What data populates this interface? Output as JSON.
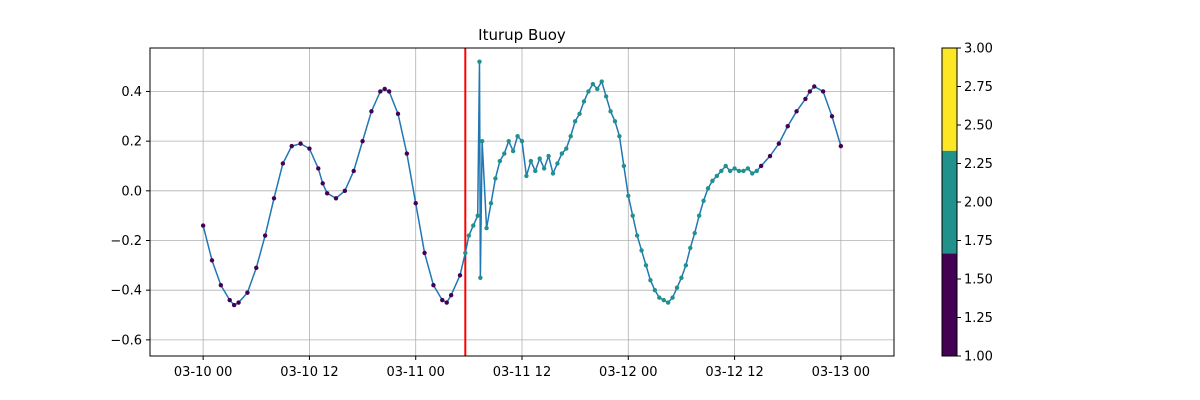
{
  "chart_data": {
    "type": "scatter",
    "title": "Iturup Buoy",
    "xlabel": "",
    "ylabel": "",
    "x_unit": "hours since 03-10 00",
    "xlim": [
      -6.0,
      78.0
    ],
    "ylim": [
      -0.665,
      0.575
    ],
    "x_ticks": [
      {
        "value": 0,
        "label": "03-10 00"
      },
      {
        "value": 12,
        "label": "03-10 12"
      },
      {
        "value": 24,
        "label": "03-11 00"
      },
      {
        "value": 36,
        "label": "03-11 12"
      },
      {
        "value": 48,
        "label": "03-12 00"
      },
      {
        "value": 60,
        "label": "03-12 12"
      },
      {
        "value": 72,
        "label": "03-13 00"
      }
    ],
    "y_ticks": [
      {
        "value": -0.6,
        "label": "−0.6"
      },
      {
        "value": -0.4,
        "label": "−0.4"
      },
      {
        "value": -0.2,
        "label": "−0.2"
      },
      {
        "value": 0.0,
        "label": "0.0"
      },
      {
        "value": 0.2,
        "label": "0.2"
      },
      {
        "value": 0.4,
        "label": "0.4"
      }
    ],
    "grid": true,
    "vertical_marker": {
      "x": 29.6,
      "color": "#ff0000"
    },
    "line_color": "#1f77b4",
    "colorbar": {
      "range": [
        1.0,
        3.0
      ],
      "ticks": [
        {
          "value": 1.0,
          "label": "1.00"
        },
        {
          "value": 1.25,
          "label": "1.25"
        },
        {
          "value": 1.5,
          "label": "1.50"
        },
        {
          "value": 1.75,
          "label": "1.75"
        },
        {
          "value": 2.0,
          "label": "2.00"
        },
        {
          "value": 2.25,
          "label": "2.25"
        },
        {
          "value": 2.5,
          "label": "2.50"
        },
        {
          "value": 2.75,
          "label": "2.75"
        },
        {
          "value": 3.0,
          "label": "3.00"
        }
      ],
      "bands": [
        {
          "from": 1.0,
          "to": 1.667,
          "color": "#440154"
        },
        {
          "from": 1.667,
          "to": 2.333,
          "color": "#21918c"
        },
        {
          "from": 2.333,
          "to": 3.0,
          "color": "#fde725"
        }
      ]
    },
    "series": [
      {
        "class": 1,
        "color": "#440154",
        "points": [
          [
            0.0,
            -0.14
          ],
          [
            1.0,
            -0.28
          ],
          [
            2.0,
            -0.38
          ],
          [
            3.0,
            -0.44
          ],
          [
            3.5,
            -0.46
          ],
          [
            4.0,
            -0.45
          ],
          [
            5.0,
            -0.41
          ],
          [
            6.0,
            -0.31
          ],
          [
            7.0,
            -0.18
          ],
          [
            8.0,
            -0.03
          ],
          [
            9.0,
            0.11
          ],
          [
            10.0,
            0.18
          ],
          [
            11.0,
            0.19
          ],
          [
            12.0,
            0.17
          ],
          [
            13.0,
            0.09
          ],
          [
            13.5,
            0.03
          ],
          [
            14.0,
            -0.01
          ],
          [
            15.0,
            -0.03
          ],
          [
            16.0,
            0.0
          ],
          [
            17.0,
            0.08
          ],
          [
            18.0,
            0.2
          ],
          [
            19.0,
            0.32
          ],
          [
            20.0,
            0.4
          ],
          [
            20.5,
            0.41
          ],
          [
            21.0,
            0.4
          ],
          [
            22.0,
            0.31
          ],
          [
            23.0,
            0.15
          ],
          [
            24.0,
            -0.05
          ],
          [
            25.0,
            -0.25
          ],
          [
            26.0,
            -0.38
          ],
          [
            27.0,
            -0.44
          ],
          [
            27.5,
            -0.45
          ],
          [
            28.0,
            -0.42
          ],
          [
            29.0,
            -0.34
          ],
          [
            63.0,
            0.1
          ],
          [
            64.0,
            0.14
          ],
          [
            65.0,
            0.19
          ],
          [
            66.0,
            0.26
          ],
          [
            67.0,
            0.32
          ],
          [
            68.0,
            0.37
          ],
          [
            68.5,
            0.4
          ],
          [
            69.0,
            0.42
          ],
          [
            70.0,
            0.4
          ],
          [
            71.0,
            0.3
          ],
          [
            72.0,
            0.18
          ]
        ]
      },
      {
        "class": 2,
        "color": "#21918c",
        "points": [
          [
            29.6,
            -0.25
          ],
          [
            30.0,
            -0.18
          ],
          [
            30.5,
            -0.14
          ],
          [
            31.0,
            -0.1
          ],
          [
            31.2,
            0.52
          ],
          [
            31.3,
            -0.35
          ],
          [
            31.5,
            0.2
          ],
          [
            32.0,
            -0.15
          ],
          [
            32.5,
            -0.05
          ],
          [
            33.0,
            0.05
          ],
          [
            33.5,
            0.12
          ],
          [
            34.0,
            0.15
          ],
          [
            34.5,
            0.2
          ],
          [
            35.0,
            0.16
          ],
          [
            35.5,
            0.22
          ],
          [
            36.0,
            0.2
          ],
          [
            36.5,
            0.06
          ],
          [
            37.0,
            0.12
          ],
          [
            37.5,
            0.08
          ],
          [
            38.0,
            0.13
          ],
          [
            38.5,
            0.09
          ],
          [
            39.0,
            0.14
          ],
          [
            39.5,
            0.07
          ],
          [
            40.0,
            0.11
          ],
          [
            40.5,
            0.15
          ],
          [
            41.0,
            0.17
          ],
          [
            41.5,
            0.22
          ],
          [
            42.0,
            0.28
          ],
          [
            42.5,
            0.31
          ],
          [
            43.0,
            0.36
          ],
          [
            43.5,
            0.4
          ],
          [
            44.0,
            0.43
          ],
          [
            44.5,
            0.41
          ],
          [
            45.0,
            0.44
          ],
          [
            45.5,
            0.38
          ],
          [
            46.0,
            0.32
          ],
          [
            46.5,
            0.28
          ],
          [
            47.0,
            0.22
          ],
          [
            47.5,
            0.1
          ],
          [
            48.0,
            -0.02
          ],
          [
            48.5,
            -0.1
          ],
          [
            49.0,
            -0.18
          ],
          [
            49.5,
            -0.24
          ],
          [
            50.0,
            -0.3
          ],
          [
            50.5,
            -0.36
          ],
          [
            51.0,
            -0.4
          ],
          [
            51.5,
            -0.43
          ],
          [
            52.0,
            -0.44
          ],
          [
            52.5,
            -0.45
          ],
          [
            53.0,
            -0.43
          ],
          [
            53.5,
            -0.39
          ],
          [
            54.0,
            -0.35
          ],
          [
            54.5,
            -0.3
          ],
          [
            55.0,
            -0.23
          ],
          [
            55.5,
            -0.17
          ],
          [
            56.0,
            -0.1
          ],
          [
            56.5,
            -0.04
          ],
          [
            57.0,
            0.01
          ],
          [
            57.5,
            0.04
          ],
          [
            58.0,
            0.06
          ],
          [
            58.5,
            0.08
          ],
          [
            59.0,
            0.1
          ],
          [
            59.5,
            0.08
          ],
          [
            60.0,
            0.09
          ],
          [
            60.5,
            0.08
          ],
          [
            61.0,
            0.08
          ],
          [
            61.5,
            0.09
          ],
          [
            62.0,
            0.07
          ],
          [
            62.5,
            0.08
          ]
        ]
      }
    ]
  }
}
